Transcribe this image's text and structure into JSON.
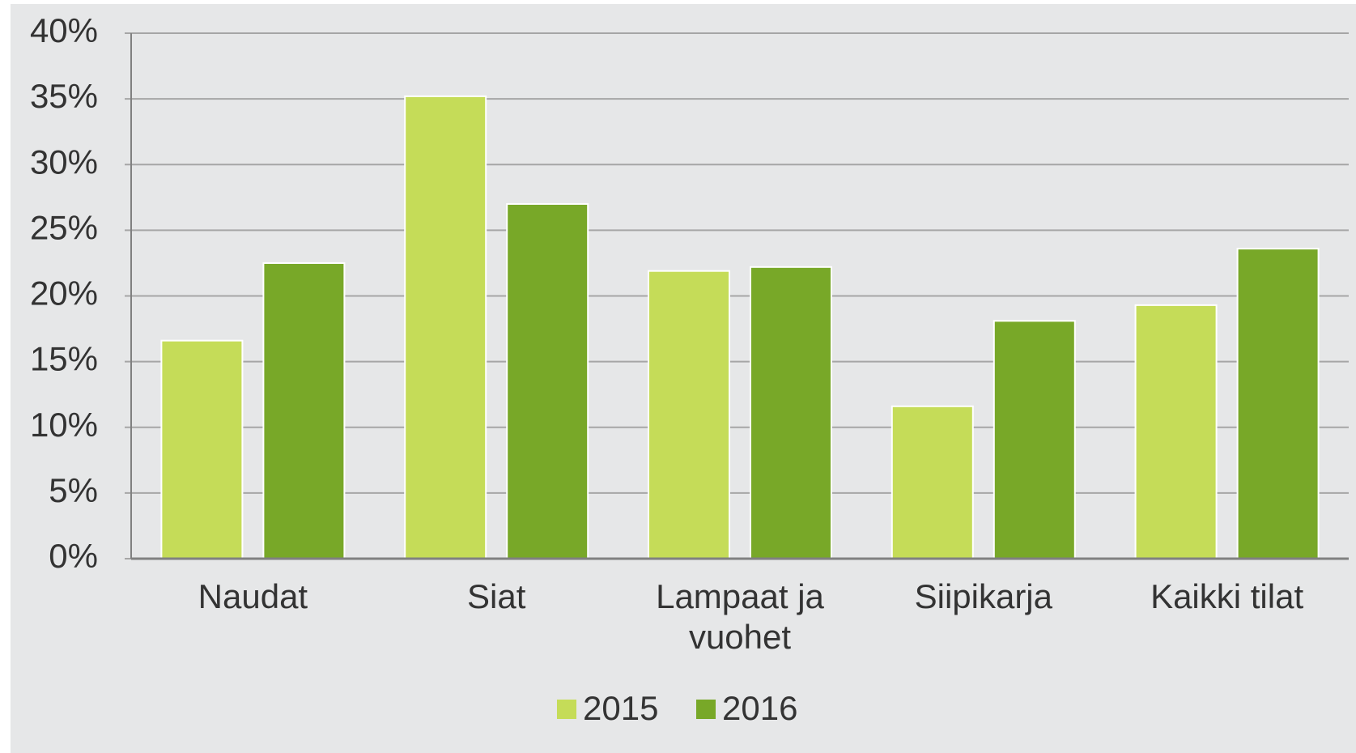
{
  "chart_data": {
    "type": "bar",
    "categories": [
      "Naudat",
      "Siat",
      "Lampaat ja vuohet",
      "Siipikarja",
      "Kaikki tilat"
    ],
    "series": [
      {
        "name": "2015",
        "color": "#c5dc58",
        "values": [
          16.6,
          35.2,
          21.9,
          11.6,
          19.3
        ]
      },
      {
        "name": "2016",
        "color": "#78a828",
        "values": [
          22.5,
          27.0,
          22.2,
          18.1,
          23.6
        ]
      }
    ],
    "ylim": [
      0,
      40
    ],
    "yticks": [
      {
        "value": 0,
        "label": "0%"
      },
      {
        "value": 5,
        "label": "5%"
      },
      {
        "value": 10,
        "label": "10%"
      },
      {
        "value": 15,
        "label": "15%"
      },
      {
        "value": 20,
        "label": "20%"
      },
      {
        "value": 25,
        "label": "25%"
      },
      {
        "value": 30,
        "label": "30%"
      },
      {
        "value": 35,
        "label": "35%"
      },
      {
        "value": 40,
        "label": "40%"
      }
    ],
    "grid": true,
    "legend": "bottom"
  }
}
